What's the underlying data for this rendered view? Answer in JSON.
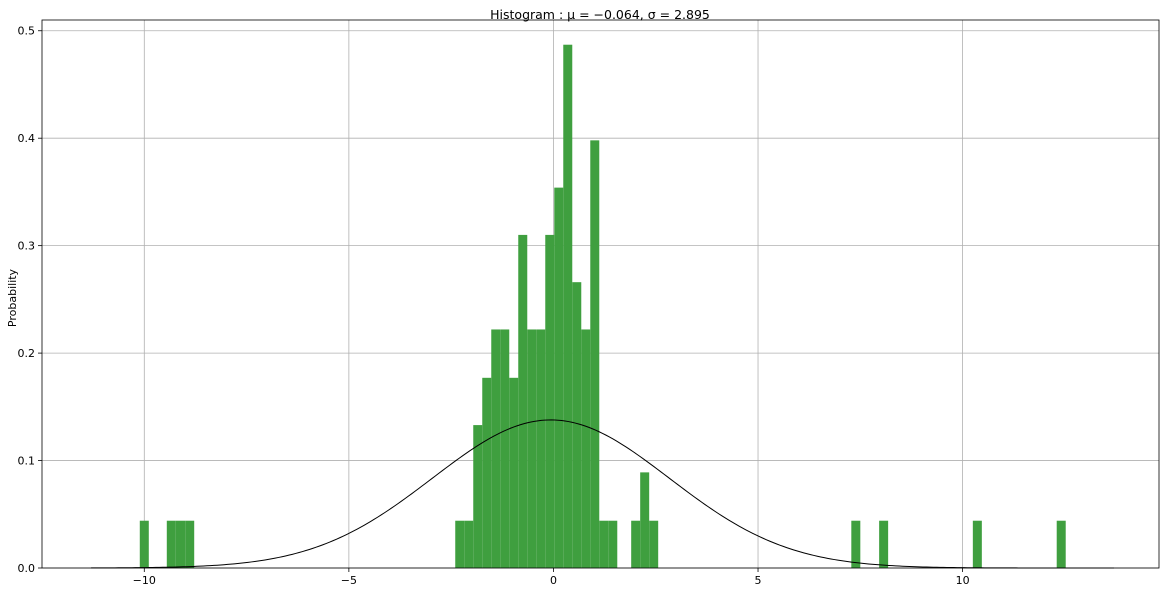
{
  "chart_data": {
    "type": "bar",
    "title": "Histogram :  μ = −0.064,  σ = 2.895",
    "xlabel": "",
    "ylabel": "Probability",
    "xlim": [
      -12.5,
      14.8
    ],
    "ylim": [
      0,
      0.51
    ],
    "x_ticks": [
      -10,
      -5,
      0,
      5,
      10
    ],
    "x_tick_labels": [
      "−10",
      "−5",
      "0",
      "5",
      "10"
    ],
    "y_ticks": [
      0.0,
      0.1,
      0.2,
      0.3,
      0.4,
      0.5
    ],
    "y_tick_labels": [
      "0.0",
      "0.1",
      "0.2",
      "0.3",
      "0.4",
      "0.5"
    ],
    "grid": true,
    "bar_color": "#3f9f3f",
    "curve_color": "#000000",
    "bins": [
      {
        "x0": -10.11,
        "x1": -9.89,
        "value": 0.044
      },
      {
        "x0": -9.45,
        "x1": -9.23,
        "value": 0.044
      },
      {
        "x0": -9.23,
        "x1": -9.0,
        "value": 0.044
      },
      {
        "x0": -9.0,
        "x1": -8.78,
        "value": 0.044
      },
      {
        "x0": -2.4,
        "x1": -2.18,
        "value": 0.044
      },
      {
        "x0": -2.18,
        "x1": -1.96,
        "value": 0.044
      },
      {
        "x0": -1.96,
        "x1": -1.74,
        "value": 0.133
      },
      {
        "x0": -1.74,
        "x1": -1.52,
        "value": 0.177
      },
      {
        "x0": -1.52,
        "x1": -1.3,
        "value": 0.222
      },
      {
        "x0": -1.3,
        "x1": -1.08,
        "value": 0.222
      },
      {
        "x0": -1.08,
        "x1": -0.86,
        "value": 0.177
      },
      {
        "x0": -0.86,
        "x1": -0.64,
        "value": 0.31
      },
      {
        "x0": -0.64,
        "x1": -0.42,
        "value": 0.222
      },
      {
        "x0": -0.42,
        "x1": -0.2,
        "value": 0.222
      },
      {
        "x0": -0.2,
        "x1": 0.02,
        "value": 0.31
      },
      {
        "x0": 0.02,
        "x1": 0.24,
        "value": 0.354
      },
      {
        "x0": 0.24,
        "x1": 0.46,
        "value": 0.487
      },
      {
        "x0": 0.46,
        "x1": 0.68,
        "value": 0.266
      },
      {
        "x0": 0.68,
        "x1": 0.9,
        "value": 0.222
      },
      {
        "x0": 0.9,
        "x1": 1.12,
        "value": 0.398
      },
      {
        "x0": 1.12,
        "x1": 1.34,
        "value": 0.044
      },
      {
        "x0": 1.34,
        "x1": 1.56,
        "value": 0.044
      },
      {
        "x0": 1.9,
        "x1": 2.12,
        "value": 0.044
      },
      {
        "x0": 2.12,
        "x1": 2.34,
        "value": 0.089
      },
      {
        "x0": 2.34,
        "x1": 2.56,
        "value": 0.044
      },
      {
        "x0": 7.28,
        "x1": 7.5,
        "value": 0.044
      },
      {
        "x0": 7.96,
        "x1": 8.18,
        "value": 0.044
      },
      {
        "x0": 10.25,
        "x1": 10.47,
        "value": 0.044
      },
      {
        "x0": 12.3,
        "x1": 12.52,
        "value": 0.044
      }
    ],
    "curve": {
      "type": "normal_pdf",
      "mu": -0.064,
      "sigma": 2.895,
      "x_range": [
        -11.3,
        13.7
      ]
    }
  }
}
